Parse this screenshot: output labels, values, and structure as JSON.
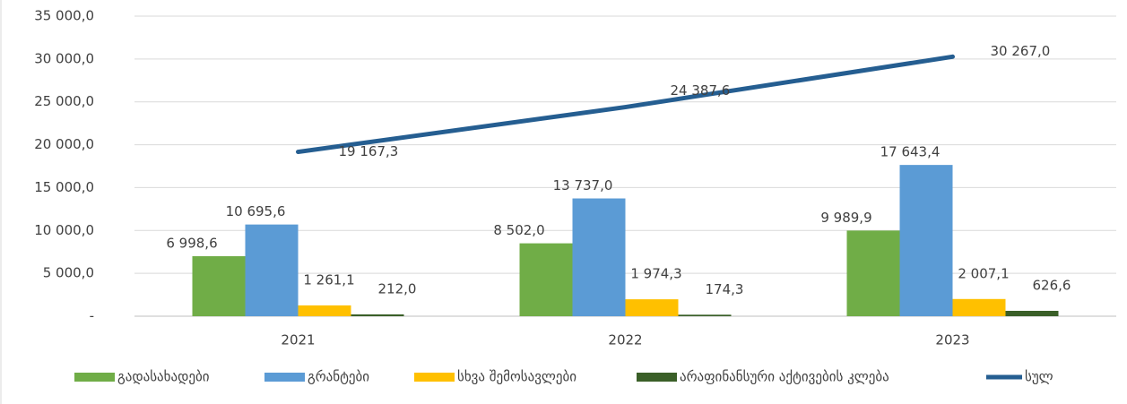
{
  "chart_data": {
    "type": "bar",
    "categories": [
      "2021",
      "2022",
      "2023"
    ],
    "ylim": [
      0,
      35000
    ],
    "yticks": [
      {
        "value": 0,
        "label": "-"
      },
      {
        "value": 5000,
        "label": "5 000,0"
      },
      {
        "value": 10000,
        "label": "10 000,0"
      },
      {
        "value": 15000,
        "label": "15 000,0"
      },
      {
        "value": 20000,
        "label": "20 000,0"
      },
      {
        "value": 25000,
        "label": "25 000,0"
      },
      {
        "value": 30000,
        "label": "30 000,0"
      },
      {
        "value": 35000,
        "label": "35 000,0"
      }
    ],
    "grid": true,
    "legend": "bottom",
    "series": [
      {
        "name": "გადასახადები",
        "color": "#70ad47",
        "values": [
          6998.6,
          8502.0,
          9989.9
        ],
        "value_labels": [
          "6 998,6",
          "8 502,0",
          "9 989,9"
        ]
      },
      {
        "name": "გრანტები",
        "color": "#5b9bd5",
        "values": [
          10695.6,
          13737.0,
          17643.4
        ],
        "value_labels": [
          "10 695,6",
          "13 737,0",
          "17 643,4"
        ]
      },
      {
        "name": "სხვა შემოსავლები",
        "color": "#ffc000",
        "values": [
          1261.1,
          1974.3,
          2007.1
        ],
        "value_labels": [
          "1 261,1",
          "1 974,3",
          "2 007,1"
        ]
      },
      {
        "name": "არაფინანსური აქტივების კლება",
        "color": "#3a5f28",
        "values": [
          212.0,
          174.3,
          626.6
        ],
        "value_labels": [
          "212,0",
          "174,3",
          "626,6"
        ]
      },
      {
        "name": "სულ",
        "type": "line",
        "color": "#255e91",
        "values": [
          19167.3,
          24387.6,
          30267.0
        ],
        "value_labels": [
          "19 167,3",
          "24 387,6",
          "30 267,0"
        ]
      }
    ]
  }
}
